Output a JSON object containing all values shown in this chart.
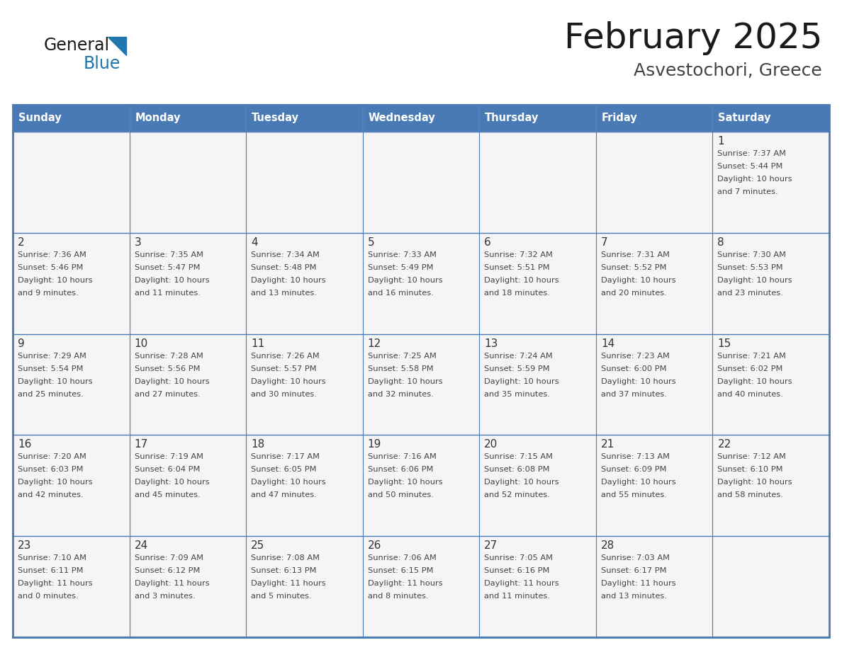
{
  "title": "February 2025",
  "subtitle": "Asvestochori, Greece",
  "days_of_week": [
    "Sunday",
    "Monday",
    "Tuesday",
    "Wednesday",
    "Thursday",
    "Friday",
    "Saturday"
  ],
  "header_bg": "#4a7ab5",
  "header_text": "#ffffff",
  "cell_bg": "#f5f5f5",
  "border_color": "#4a7ab5",
  "text_color": "#444444",
  "day_num_color": "#333333",
  "logo_general_color": "#1a1a1a",
  "logo_blue_color": "#2176ae",
  "logo_triangle_color": "#2176ae",
  "title_color": "#1a1a1a",
  "subtitle_color": "#444444",
  "calendar": [
    [
      null,
      null,
      null,
      null,
      null,
      null,
      {
        "day": 1,
        "sunrise": "7:37 AM",
        "sunset": "5:44 PM",
        "daylight": "10 hours and 7 minutes"
      }
    ],
    [
      {
        "day": 2,
        "sunrise": "7:36 AM",
        "sunset": "5:46 PM",
        "daylight": "10 hours and 9 minutes"
      },
      {
        "day": 3,
        "sunrise": "7:35 AM",
        "sunset": "5:47 PM",
        "daylight": "10 hours and 11 minutes"
      },
      {
        "day": 4,
        "sunrise": "7:34 AM",
        "sunset": "5:48 PM",
        "daylight": "10 hours and 13 minutes"
      },
      {
        "day": 5,
        "sunrise": "7:33 AM",
        "sunset": "5:49 PM",
        "daylight": "10 hours and 16 minutes"
      },
      {
        "day": 6,
        "sunrise": "7:32 AM",
        "sunset": "5:51 PM",
        "daylight": "10 hours and 18 minutes"
      },
      {
        "day": 7,
        "sunrise": "7:31 AM",
        "sunset": "5:52 PM",
        "daylight": "10 hours and 20 minutes"
      },
      {
        "day": 8,
        "sunrise": "7:30 AM",
        "sunset": "5:53 PM",
        "daylight": "10 hours and 23 minutes"
      }
    ],
    [
      {
        "day": 9,
        "sunrise": "7:29 AM",
        "sunset": "5:54 PM",
        "daylight": "10 hours and 25 minutes"
      },
      {
        "day": 10,
        "sunrise": "7:28 AM",
        "sunset": "5:56 PM",
        "daylight": "10 hours and 27 minutes"
      },
      {
        "day": 11,
        "sunrise": "7:26 AM",
        "sunset": "5:57 PM",
        "daylight": "10 hours and 30 minutes"
      },
      {
        "day": 12,
        "sunrise": "7:25 AM",
        "sunset": "5:58 PM",
        "daylight": "10 hours and 32 minutes"
      },
      {
        "day": 13,
        "sunrise": "7:24 AM",
        "sunset": "5:59 PM",
        "daylight": "10 hours and 35 minutes"
      },
      {
        "day": 14,
        "sunrise": "7:23 AM",
        "sunset": "6:00 PM",
        "daylight": "10 hours and 37 minutes"
      },
      {
        "day": 15,
        "sunrise": "7:21 AM",
        "sunset": "6:02 PM",
        "daylight": "10 hours and 40 minutes"
      }
    ],
    [
      {
        "day": 16,
        "sunrise": "7:20 AM",
        "sunset": "6:03 PM",
        "daylight": "10 hours and 42 minutes"
      },
      {
        "day": 17,
        "sunrise": "7:19 AM",
        "sunset": "6:04 PM",
        "daylight": "10 hours and 45 minutes"
      },
      {
        "day": 18,
        "sunrise": "7:17 AM",
        "sunset": "6:05 PM",
        "daylight": "10 hours and 47 minutes"
      },
      {
        "day": 19,
        "sunrise": "7:16 AM",
        "sunset": "6:06 PM",
        "daylight": "10 hours and 50 minutes"
      },
      {
        "day": 20,
        "sunrise": "7:15 AM",
        "sunset": "6:08 PM",
        "daylight": "10 hours and 52 minutes"
      },
      {
        "day": 21,
        "sunrise": "7:13 AM",
        "sunset": "6:09 PM",
        "daylight": "10 hours and 55 minutes"
      },
      {
        "day": 22,
        "sunrise": "7:12 AM",
        "sunset": "6:10 PM",
        "daylight": "10 hours and 58 minutes"
      }
    ],
    [
      {
        "day": 23,
        "sunrise": "7:10 AM",
        "sunset": "6:11 PM",
        "daylight": "11 hours and 0 minutes"
      },
      {
        "day": 24,
        "sunrise": "7:09 AM",
        "sunset": "6:12 PM",
        "daylight": "11 hours and 3 minutes"
      },
      {
        "day": 25,
        "sunrise": "7:08 AM",
        "sunset": "6:13 PM",
        "daylight": "11 hours and 5 minutes"
      },
      {
        "day": 26,
        "sunrise": "7:06 AM",
        "sunset": "6:15 PM",
        "daylight": "11 hours and 8 minutes"
      },
      {
        "day": 27,
        "sunrise": "7:05 AM",
        "sunset": "6:16 PM",
        "daylight": "11 hours and 11 minutes"
      },
      {
        "day": 28,
        "sunrise": "7:03 AM",
        "sunset": "6:17 PM",
        "daylight": "11 hours and 13 minutes"
      },
      null
    ]
  ]
}
